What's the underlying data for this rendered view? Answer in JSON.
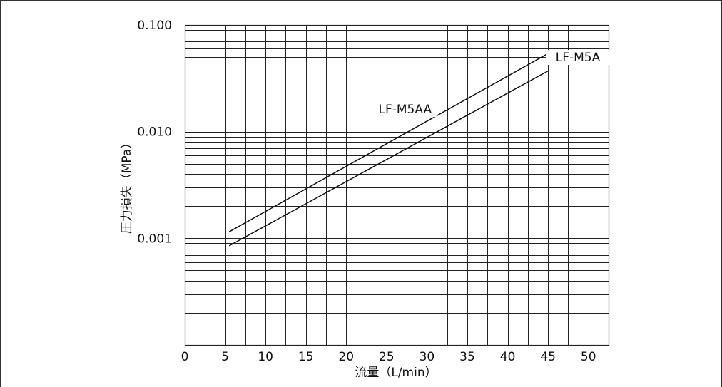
{
  "chart_data": {
    "type": "line",
    "xlabel": "流量（L/min）",
    "ylabel": "圧力損失（MPa）",
    "x_ticks": [
      "0",
      "5",
      "10",
      "15",
      "20",
      "25",
      "30",
      "35",
      "40",
      "45",
      "50"
    ],
    "y_ticks": [
      "0.100",
      "0.010",
      "0.001"
    ],
    "xlim": [
      0,
      52.5
    ],
    "ylim": [
      0.0001,
      0.1
    ],
    "y_scale": "log",
    "grid": true,
    "series": [
      {
        "name": "LF-M5AA",
        "x": [
          5.5,
          45
        ],
        "y": [
          0.00115,
          0.054
        ]
      },
      {
        "name": "LF-M5A",
        "x": [
          5.5,
          45
        ],
        "y": [
          0.00085,
          0.037
        ]
      }
    ],
    "colors": {
      "line": "#111111",
      "grid": "#222222",
      "frame": "#333333"
    }
  }
}
